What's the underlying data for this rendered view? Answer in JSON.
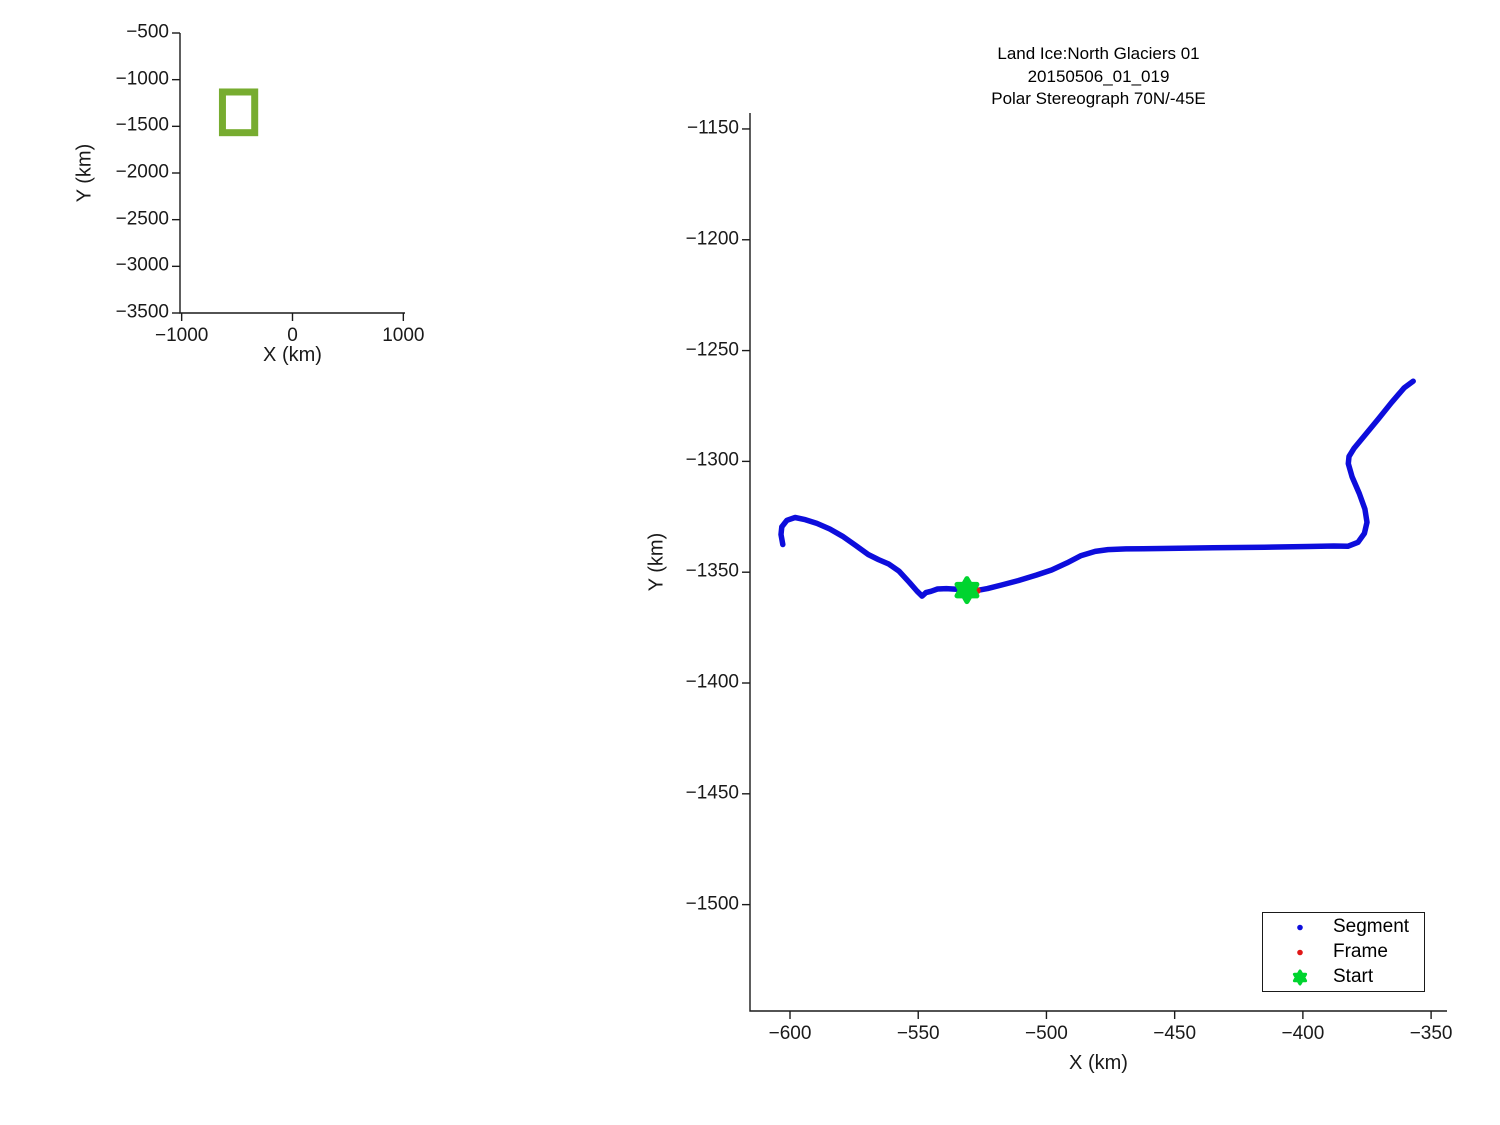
{
  "page": {
    "background": "#ffffff"
  },
  "colors": {
    "axis": "#1a1a1a",
    "segment_blue": "#0d0ddc",
    "frame_red": "#e01717",
    "start_green": "#00d42f",
    "region_green": "#77ac30"
  },
  "legend": {
    "items": [
      {
        "label": "Segment",
        "marker": "dot",
        "color": "#0d0ddc",
        "r": 2.8
      },
      {
        "label": "Frame",
        "marker": "dot",
        "color": "#e01717",
        "r": 2.8
      },
      {
        "label": "Start",
        "marker": "hexagram",
        "color": "#00d42f",
        "r": 6.5
      }
    ]
  },
  "chart_data": [
    {
      "id": "overview",
      "type": "line",
      "title": "",
      "xlabel": "X (km)",
      "ylabel": "Y (km)",
      "xlim": [
        -1015,
        1015
      ],
      "ylim": [
        -3500,
        -500
      ],
      "grid": false,
      "x_ticks": {
        "values": [
          -1000,
          0,
          1000
        ],
        "labels": [
          "−1000",
          "0",
          "1000"
        ]
      },
      "y_ticks": {
        "values": [
          -500,
          -1000,
          -1500,
          -2000,
          -2500,
          -3000,
          -3500
        ],
        "labels": [
          "−500",
          "−1000",
          "−1500",
          "−2000",
          "−2500",
          "−3000",
          "−3500"
        ]
      },
      "series": [
        {
          "name": "map-region-box",
          "kind": "rect",
          "color": "#77ac30",
          "stroke_width": 7,
          "x": [
            -632,
            -341
          ],
          "y": [
            -1568,
            -1132
          ]
        }
      ]
    },
    {
      "id": "main",
      "type": "line",
      "title_lines": [
        "Land Ice:North Glaciers 01",
        "20150506_01_019",
        "Polar Stereograph 70N/-45E"
      ],
      "xlabel": "X (km)",
      "ylabel": "Y (km)",
      "xlim": [
        -615.6,
        -343.8
      ],
      "ylim": [
        -1548,
        -1142.8
      ],
      "grid": false,
      "legend_position": "bottom-right",
      "x_ticks": {
        "values": [
          -600,
          -550,
          -500,
          -450,
          -400,
          -350
        ],
        "labels": [
          "−600",
          "−550",
          "−500",
          "−450",
          "−400",
          "−350"
        ]
      },
      "y_ticks": {
        "values": [
          -1150,
          -1200,
          -1250,
          -1300,
          -1350,
          -1400,
          -1450,
          -1500
        ],
        "labels": [
          "−1150",
          "−1200",
          "−1250",
          "−1300",
          "−1350",
          "−1400",
          "−1450",
          "−1500"
        ]
      },
      "series": [
        {
          "name": "Segment",
          "kind": "path",
          "color": "#0d0ddc",
          "stroke_width": 5.5,
          "points": [
            [
              -602.8,
              -1337.5
            ],
            [
              -603.5,
              -1333
            ],
            [
              -603.2,
              -1329.5
            ],
            [
              -601.2,
              -1326.6
            ],
            [
              -598,
              -1325.3
            ],
            [
              -594,
              -1326.3
            ],
            [
              -589.5,
              -1328
            ],
            [
              -584.5,
              -1330.5
            ],
            [
              -579.5,
              -1333.8
            ],
            [
              -574.5,
              -1337.8
            ],
            [
              -569.5,
              -1342
            ],
            [
              -565.5,
              -1344.3
            ],
            [
              -561.5,
              -1346.3
            ],
            [
              -557.5,
              -1349.5
            ],
            [
              -553.5,
              -1354.5
            ],
            [
              -550.5,
              -1358.5
            ],
            [
              -548.5,
              -1360.8
            ],
            [
              -547,
              -1359.2
            ],
            [
              -545,
              -1358.6
            ],
            [
              -542.5,
              -1357.6
            ],
            [
              -539,
              -1357.4
            ],
            [
              -535,
              -1357.7
            ],
            [
              -531,
              -1358.1
            ],
            [
              -527,
              -1358.2
            ],
            [
              -523,
              -1357.4
            ],
            [
              -517.5,
              -1355.8
            ],
            [
              -511,
              -1353.8
            ],
            [
              -504,
              -1351.3
            ],
            [
              -498,
              -1349
            ],
            [
              -492,
              -1345.8
            ],
            [
              -486.5,
              -1342.5
            ],
            [
              -481,
              -1340.6
            ],
            [
              -476,
              -1339.8
            ],
            [
              -469,
              -1339.5
            ],
            [
              -455,
              -1339.3
            ],
            [
              -435,
              -1339
            ],
            [
              -415,
              -1338.7
            ],
            [
              -398,
              -1338.4
            ],
            [
              -388,
              -1338.2
            ],
            [
              -382.5,
              -1338.3
            ],
            [
              -378.5,
              -1336.5
            ],
            [
              -376,
              -1332.5
            ],
            [
              -375,
              -1327.5
            ],
            [
              -375.8,
              -1321.5
            ],
            [
              -378,
              -1314.5
            ],
            [
              -380.8,
              -1307
            ],
            [
              -382.3,
              -1301
            ],
            [
              -382,
              -1297.8
            ],
            [
              -380,
              -1294
            ],
            [
              -375.5,
              -1287.8
            ],
            [
              -370.5,
              -1280.8
            ],
            [
              -365.5,
              -1273.5
            ],
            [
              -360.5,
              -1266.8
            ],
            [
              -357,
              -1263.8
            ]
          ]
        },
        {
          "name": "Frame",
          "kind": "dot",
          "color": "#e01717",
          "x": -527,
          "y": -1358.3,
          "r": 3.5
        },
        {
          "name": "Start",
          "kind": "hexagram",
          "color": "#00d42f",
          "x": -531,
          "y": -1358.1,
          "r": 11.5
        }
      ]
    }
  ]
}
